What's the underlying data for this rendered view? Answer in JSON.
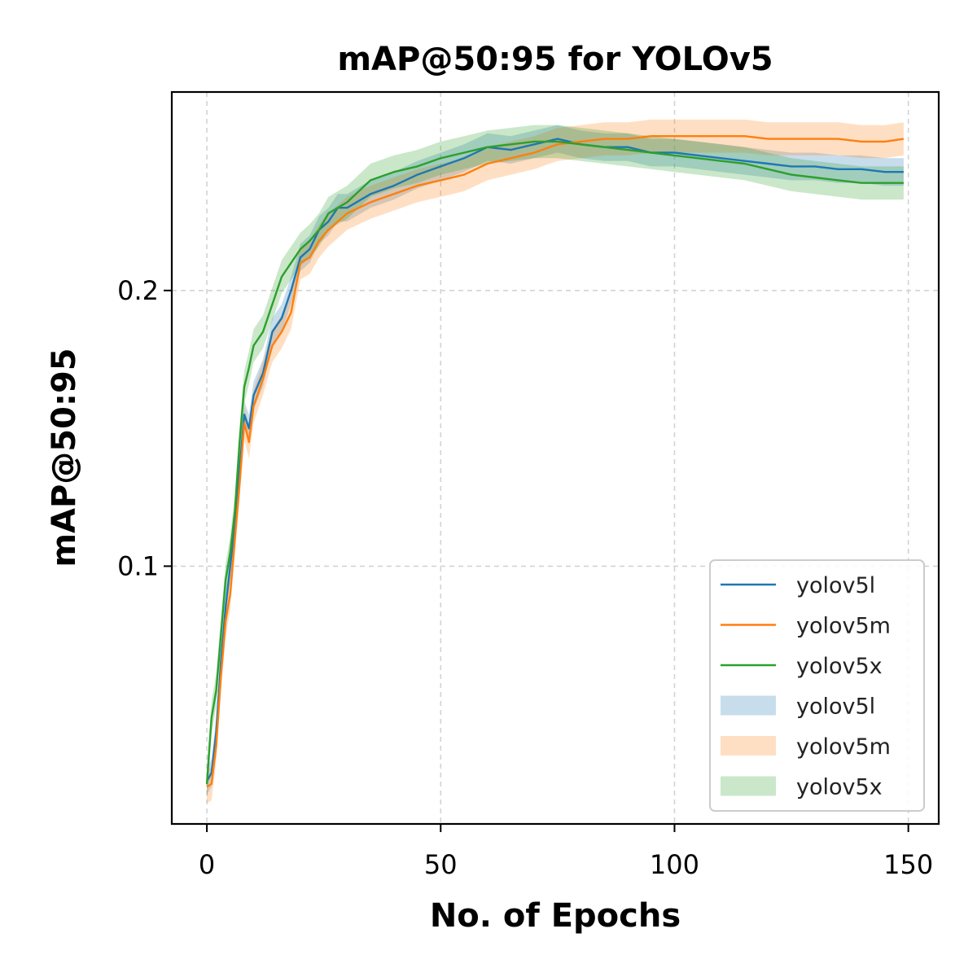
{
  "chart_data": {
    "type": "line",
    "title": "mAP@50:95 for YOLOv5",
    "xlabel": "No. of Epochs",
    "ylabel": "mAP@50:95",
    "xlim": [
      -7.5,
      156.5
    ],
    "ylim": [
      0.0065,
      0.272
    ],
    "xticks": [
      0,
      50,
      100,
      150
    ],
    "xtick_labels": [
      "0",
      "50",
      "100",
      "150"
    ],
    "yticks": [
      0.1,
      0.2
    ],
    "ytick_labels": [
      "0.1",
      "0.2"
    ],
    "grid": true,
    "legend_position": "lower-right",
    "legend_entries": [
      {
        "label": "yolov5l",
        "kind": "line",
        "color": "#1f77b4"
      },
      {
        "label": "yolov5m",
        "kind": "line",
        "color": "#ff7f0e"
      },
      {
        "label": "yolov5x",
        "kind": "line",
        "color": "#2ca02c"
      },
      {
        "label": "yolov5l",
        "kind": "band",
        "color": "#1f77b4"
      },
      {
        "label": "yolov5m",
        "kind": "band",
        "color": "#ff7f0e"
      },
      {
        "label": "yolov5x",
        "kind": "band",
        "color": "#2ca02c"
      }
    ],
    "series": [
      {
        "name": "yolov5l",
        "color": "#1f77b4",
        "band_halfwidth": 0.005,
        "x": [
          0,
          1,
          2,
          3,
          4,
          5,
          6,
          7,
          8,
          9,
          10,
          12,
          14,
          16,
          18,
          20,
          22,
          24,
          26,
          28,
          30,
          35,
          40,
          45,
          50,
          55,
          60,
          65,
          70,
          75,
          80,
          85,
          90,
          95,
          100,
          105,
          110,
          115,
          120,
          125,
          130,
          135,
          140,
          145,
          149
        ],
        "y": [
          0.022,
          0.025,
          0.04,
          0.065,
          0.085,
          0.1,
          0.115,
          0.135,
          0.155,
          0.15,
          0.162,
          0.17,
          0.185,
          0.19,
          0.2,
          0.212,
          0.215,
          0.222,
          0.225,
          0.23,
          0.23,
          0.235,
          0.238,
          0.242,
          0.245,
          0.248,
          0.252,
          0.251,
          0.253,
          0.255,
          0.253,
          0.252,
          0.252,
          0.25,
          0.25,
          0.249,
          0.248,
          0.247,
          0.246,
          0.245,
          0.245,
          0.244,
          0.244,
          0.243,
          0.243
        ]
      },
      {
        "name": "yolov5m",
        "color": "#ff7f0e",
        "band_halfwidth": 0.006,
        "x": [
          0,
          1,
          2,
          3,
          4,
          5,
          6,
          7,
          8,
          9,
          10,
          12,
          14,
          16,
          18,
          20,
          22,
          24,
          26,
          28,
          30,
          35,
          40,
          45,
          50,
          55,
          60,
          65,
          70,
          75,
          80,
          85,
          90,
          95,
          100,
          105,
          110,
          115,
          120,
          125,
          130,
          135,
          140,
          145,
          149
        ],
        "y": [
          0.02,
          0.021,
          0.035,
          0.06,
          0.08,
          0.09,
          0.11,
          0.13,
          0.152,
          0.145,
          0.158,
          0.168,
          0.18,
          0.185,
          0.192,
          0.21,
          0.212,
          0.218,
          0.222,
          0.225,
          0.228,
          0.232,
          0.235,
          0.238,
          0.24,
          0.242,
          0.246,
          0.248,
          0.25,
          0.253,
          0.254,
          0.255,
          0.255,
          0.256,
          0.256,
          0.256,
          0.256,
          0.256,
          0.255,
          0.255,
          0.255,
          0.255,
          0.254,
          0.254,
          0.255
        ]
      },
      {
        "name": "yolov5x",
        "color": "#2ca02c",
        "band_halfwidth": 0.006,
        "x": [
          0,
          1,
          2,
          3,
          4,
          5,
          6,
          7,
          8,
          9,
          10,
          12,
          14,
          16,
          18,
          20,
          22,
          24,
          26,
          28,
          30,
          35,
          40,
          45,
          50,
          55,
          60,
          65,
          70,
          75,
          80,
          85,
          90,
          95,
          100,
          105,
          110,
          115,
          120,
          125,
          130,
          135,
          140,
          145,
          149
        ],
        "y": [
          0.021,
          0.045,
          0.055,
          0.075,
          0.095,
          0.105,
          0.12,
          0.145,
          0.165,
          0.172,
          0.18,
          0.185,
          0.195,
          0.205,
          0.21,
          0.215,
          0.218,
          0.222,
          0.228,
          0.23,
          0.232,
          0.24,
          0.243,
          0.245,
          0.248,
          0.25,
          0.252,
          0.253,
          0.254,
          0.254,
          0.253,
          0.252,
          0.251,
          0.25,
          0.249,
          0.248,
          0.247,
          0.246,
          0.244,
          0.242,
          0.241,
          0.24,
          0.239,
          0.239,
          0.239
        ]
      }
    ]
  }
}
